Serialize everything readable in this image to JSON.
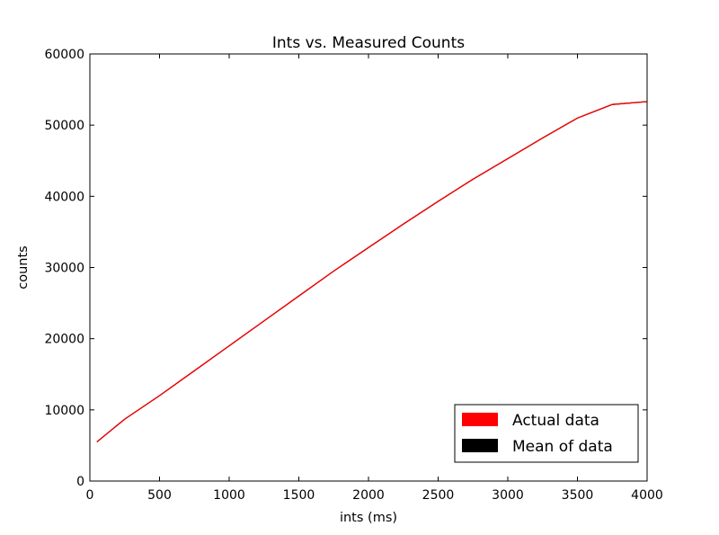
{
  "chart_data": {
    "type": "line",
    "title": "Ints vs. Measured Counts",
    "xlabel": "ints (ms)",
    "ylabel": "counts",
    "xlim": [
      0,
      4000
    ],
    "ylim": [
      0,
      60000
    ],
    "xticks": [
      0,
      500,
      1000,
      1500,
      2000,
      2500,
      3000,
      3500,
      4000
    ],
    "yticks": [
      0,
      10000,
      20000,
      30000,
      40000,
      50000,
      60000
    ],
    "grid": false,
    "legend_placement": "lower-right",
    "series": [
      {
        "name": "Mean of data",
        "color": "#000000",
        "x": [
          50,
          250,
          500,
          750,
          1000,
          1250,
          1500,
          1750,
          2000,
          2250,
          2500,
          2750,
          3000,
          3250,
          3500,
          3750,
          4000
        ],
        "y": [
          5500,
          8700,
          12000,
          15500,
          19000,
          22500,
          26000,
          29500,
          32800,
          36100,
          39300,
          42400,
          45300,
          48200,
          51000,
          52900,
          53300
        ]
      },
      {
        "name": "Actual data",
        "color": "#ff0000",
        "x": [
          50,
          250,
          500,
          750,
          1000,
          1250,
          1500,
          1750,
          2000,
          2250,
          2500,
          2750,
          3000,
          3250,
          3500,
          3750,
          4000
        ],
        "y": [
          5500,
          8700,
          12000,
          15500,
          19000,
          22500,
          26000,
          29500,
          32800,
          36100,
          39300,
          42400,
          45300,
          48200,
          51000,
          52900,
          53300
        ]
      }
    ]
  }
}
